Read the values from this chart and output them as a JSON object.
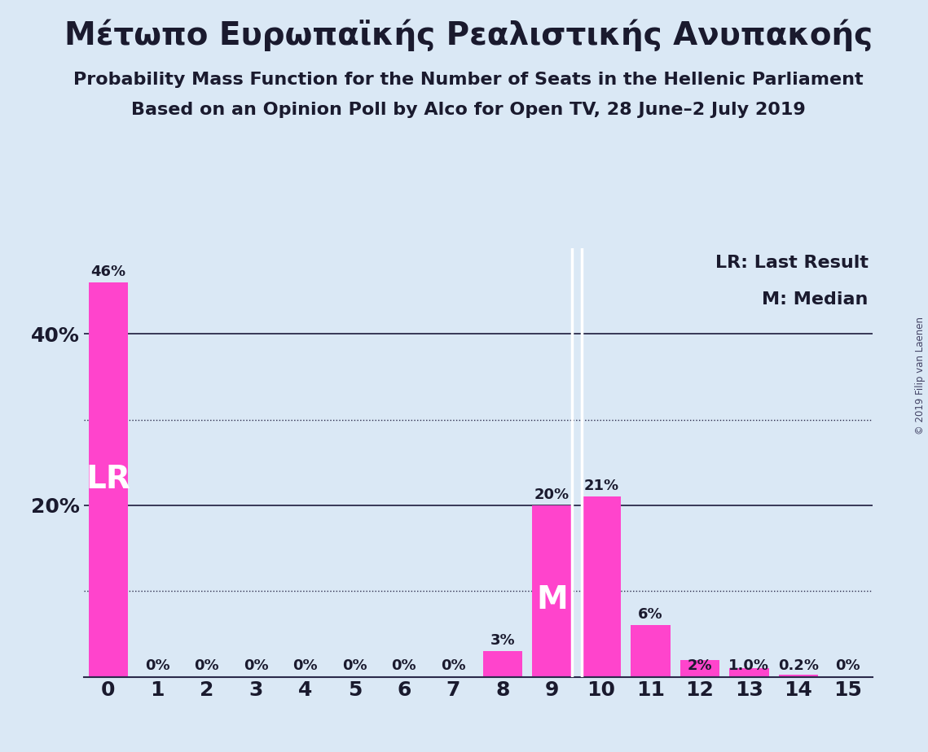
{
  "title": "Μέτωπο Ευρωπαϊκής Ρεαλιστικής Ανυπακοής",
  "subtitle1": "Probability Mass Function for the Number of Seats in the Hellenic Parliament",
  "subtitle2": "Based on an Opinion Poll by Alco for Open TV, 28 June–2 July 2019",
  "copyright": "© 2019 Filip van Laenen",
  "categories": [
    0,
    1,
    2,
    3,
    4,
    5,
    6,
    7,
    8,
    9,
    10,
    11,
    12,
    13,
    14,
    15
  ],
  "values": [
    0.46,
    0.0,
    0.0,
    0.0,
    0.0,
    0.0,
    0.0,
    0.0,
    0.03,
    0.2,
    0.21,
    0.06,
    0.02,
    0.01,
    0.002,
    0.0
  ],
  "labels": [
    "46%",
    "0%",
    "0%",
    "0%",
    "0%",
    "0%",
    "0%",
    "0%",
    "3%",
    "20%",
    "21%",
    "6%",
    "2%",
    "1.0%",
    "0.2%",
    "0%"
  ],
  "bar_color": "#FF44CC",
  "background_color": "#DAE8F5",
  "lr_bar_index": 0,
  "median_bar_index": 9,
  "lr_label": "LR",
  "median_label": "M",
  "legend_lr": "LR: Last Result",
  "legend_m": "M: Median",
  "ylim": [
    0,
    0.5
  ],
  "yticks": [
    0.0,
    0.2,
    0.4
  ],
  "ytick_labels": [
    "",
    "20%",
    "40%"
  ],
  "dotted_lines": [
    0.1,
    0.3
  ],
  "solid_lines": [
    0.2,
    0.4
  ],
  "title_fontsize": 28,
  "subtitle_fontsize": 16,
  "label_fontsize": 13,
  "axis_fontsize": 18,
  "legend_fontsize": 16,
  "lr_label_fontsize": 28,
  "median_label_fontsize": 28,
  "text_color": "#1a1a2e",
  "grid_color": "#2a2a4a"
}
